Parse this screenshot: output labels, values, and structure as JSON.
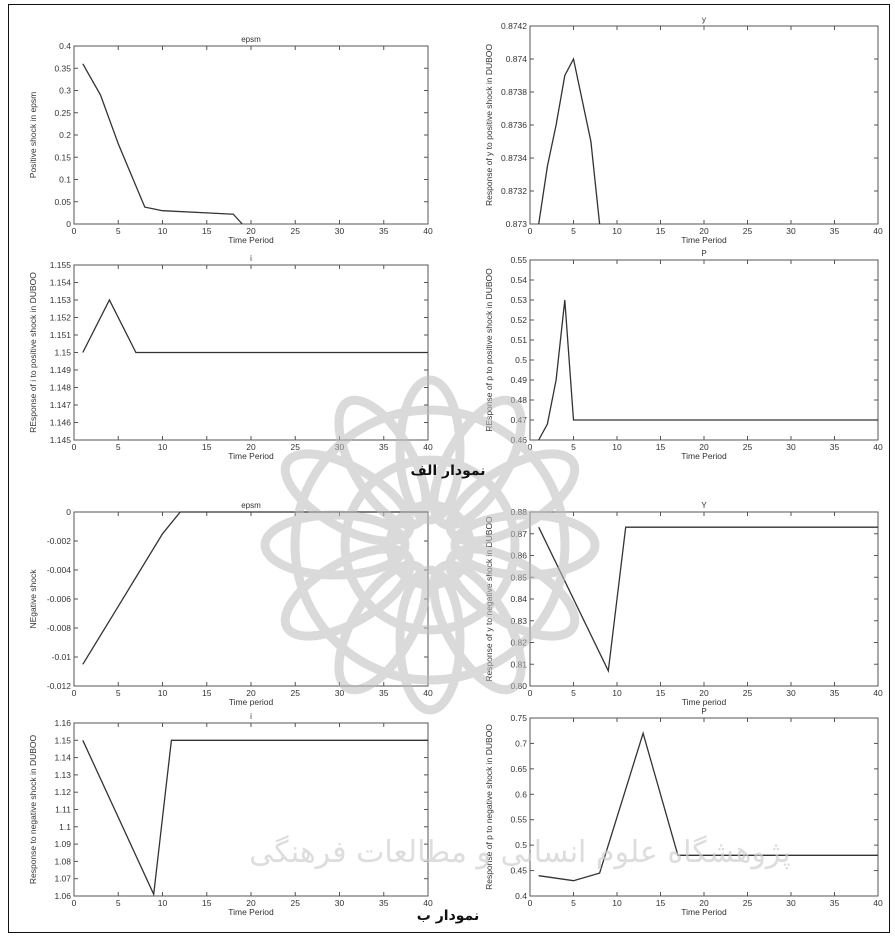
{
  "figure": {
    "caption_a": "نمودار الف",
    "caption_b": "نمودار ب",
    "watermark_text": "پژوهشگاه علوم انسانی و مطالعات فرهنگی"
  },
  "chart_data": [
    {
      "type": "line",
      "title": "epsm",
      "xlabel": "Time Period",
      "ylabel": "Positive shock in epsm",
      "xlim": [
        0,
        40
      ],
      "ylim": [
        0,
        0.4
      ],
      "xticks": [
        0,
        5,
        10,
        15,
        20,
        25,
        30,
        35,
        40
      ],
      "yticks": [
        0,
        0.05,
        0.1,
        0.15,
        0.2,
        0.25,
        0.3,
        0.35,
        0.4
      ],
      "ytick_labels": [
        "0",
        "0.05",
        "0.1",
        "0.15",
        "0.2",
        "0.25",
        "0.3",
        "0.35",
        "0.4"
      ],
      "x": [
        1,
        3,
        5,
        8,
        10,
        15,
        18,
        19
      ],
      "y": [
        0.36,
        0.29,
        0.18,
        0.038,
        0.03,
        0.025,
        0.022,
        0.0
      ]
    },
    {
      "type": "line",
      "title": "y",
      "xlabel": "Time Period",
      "ylabel": "Response of y to positive shock in DUBOO",
      "xlim": [
        0,
        40
      ],
      "ylim": [
        0.873,
        0.8742
      ],
      "xticks": [
        0,
        5,
        10,
        15,
        20,
        25,
        30,
        35,
        40
      ],
      "yticks": [
        0.873,
        0.8732,
        0.8734,
        0.8736,
        0.8738,
        0.874,
        0.8742
      ],
      "ytick_labels": [
        "0.873",
        "0.8732",
        "0.8734",
        "0.8736",
        "0.8738",
        "0.874",
        "0.8742"
      ],
      "x": [
        1,
        2,
        3,
        4,
        5,
        6,
        7,
        8
      ],
      "y": [
        0.873,
        0.87335,
        0.8736,
        0.8739,
        0.874,
        0.87375,
        0.8735,
        0.873
      ]
    },
    {
      "type": "line",
      "title": "i",
      "xlabel": "Time Period",
      "ylabel": "REsponse of i to positive shock in DUBOO",
      "xlim": [
        0,
        40
      ],
      "ylim": [
        1.145,
        1.155
      ],
      "xticks": [
        0,
        5,
        10,
        15,
        20,
        25,
        30,
        35,
        40
      ],
      "yticks": [
        1.145,
        1.146,
        1.147,
        1.148,
        1.149,
        1.15,
        1.151,
        1.152,
        1.153,
        1.154,
        1.155
      ],
      "ytick_labels": [
        "1.145",
        "1.146",
        "1.147",
        "1.148",
        "1.149",
        "1.15",
        "1.151",
        "1.152",
        "1.153",
        "1.154",
        "1.155"
      ],
      "x": [
        1,
        4,
        7,
        40
      ],
      "y": [
        1.15,
        1.153,
        1.15,
        1.15
      ]
    },
    {
      "type": "line",
      "title": "P",
      "xlabel": "Time Period",
      "ylabel": "REsponse of p to positive shock in DUBOO",
      "xlim": [
        0,
        40
      ],
      "ylim": [
        0.46,
        0.55
      ],
      "xticks": [
        0,
        5,
        10,
        15,
        20,
        25,
        30,
        35,
        40
      ],
      "yticks": [
        0.46,
        0.47,
        0.48,
        0.49,
        0.5,
        0.51,
        0.52,
        0.53,
        0.54,
        0.55
      ],
      "ytick_labels": [
        "0.46",
        "0.47",
        "0.48",
        "0.49",
        "0.5",
        "0.51",
        "0.52",
        "0.53",
        "0.54",
        "0.55"
      ],
      "x": [
        1,
        2,
        3,
        4,
        5,
        40
      ],
      "y": [
        0.46,
        0.468,
        0.49,
        0.53,
        0.47,
        0.47
      ]
    },
    {
      "type": "line",
      "title": "epsm",
      "xlabel": "Time period",
      "ylabel": "NEgative shock",
      "xlim": [
        0,
        40
      ],
      "ylim": [
        -0.012,
        0
      ],
      "xticks": [
        0,
        5,
        10,
        15,
        20,
        25,
        30,
        35,
        40
      ],
      "yticks": [
        -0.012,
        -0.01,
        -0.008,
        -0.006,
        -0.004,
        -0.002,
        0
      ],
      "ytick_labels": [
        "-0.012",
        "-0.01",
        "-0.008",
        "-0.006",
        "-0.004",
        "-0.002",
        "0"
      ],
      "x": [
        1,
        5,
        10,
        12,
        40
      ],
      "y": [
        -0.0105,
        -0.0065,
        -0.0015,
        0.0,
        0.0
      ]
    },
    {
      "type": "line",
      "title": "Y",
      "xlabel": "Time period",
      "ylabel": "Response of y to negative shock in DUBOO",
      "xlim": [
        0,
        40
      ],
      "ylim": [
        0.8,
        0.88
      ],
      "xticks": [
        0,
        5,
        10,
        15,
        20,
        25,
        30,
        35,
        40
      ],
      "yticks": [
        0.8,
        0.81,
        0.82,
        0.83,
        0.84,
        0.85,
        0.86,
        0.87,
        0.88
      ],
      "ytick_labels": [
        "0.80",
        "0.81",
        "0.82",
        "0.83",
        "0.84",
        "0.85",
        "0.86",
        "0.87",
        "0.88"
      ],
      "x": [
        1,
        9,
        11,
        40
      ],
      "y": [
        0.873,
        0.807,
        0.873,
        0.873
      ]
    },
    {
      "type": "line",
      "title": "i",
      "xlabel": "Time Period",
      "ylabel": "Response to negative shock in DUBOO",
      "xlim": [
        0,
        40
      ],
      "ylim": [
        1.06,
        1.16
      ],
      "xticks": [
        0,
        5,
        10,
        15,
        20,
        25,
        30,
        35,
        40
      ],
      "yticks": [
        1.06,
        1.07,
        1.08,
        1.09,
        1.1,
        1.11,
        1.12,
        1.13,
        1.14,
        1.15,
        1.16
      ],
      "ytick_labels": [
        "1.06",
        "1.07",
        "1.08",
        "1.09",
        "1.1",
        "1.11",
        "1.12",
        "1.13",
        "1.14",
        "1.15",
        "1.16"
      ],
      "x": [
        1,
        9,
        11,
        40
      ],
      "y": [
        1.15,
        1.061,
        1.15,
        1.15
      ]
    },
    {
      "type": "line",
      "title": "P",
      "xlabel": "Time Period",
      "ylabel": "Response of p to negative shock in DUBOO",
      "xlim": [
        0,
        40
      ],
      "ylim": [
        0.4,
        0.75
      ],
      "xticks": [
        0,
        5,
        10,
        15,
        20,
        25,
        30,
        35,
        40
      ],
      "yticks": [
        0.4,
        0.45,
        0.5,
        0.55,
        0.6,
        0.65,
        0.7,
        0.75
      ],
      "ytick_labels": [
        "0.4",
        "0.45",
        "0.5",
        "0.55",
        "0.6",
        "0.65",
        "0.7",
        "0.75"
      ],
      "x": [
        1,
        5,
        8,
        13,
        17,
        40
      ],
      "y": [
        0.44,
        0.43,
        0.445,
        0.72,
        0.48,
        0.48
      ]
    }
  ]
}
